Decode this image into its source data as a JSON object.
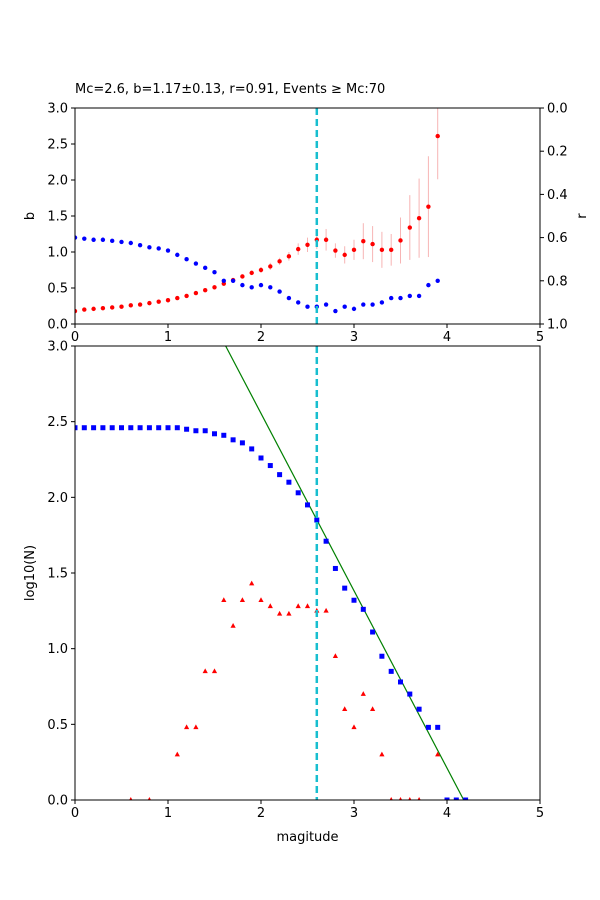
{
  "chart_data": [
    {
      "type": "scatter",
      "title": "Mc=2.6, b=1.17±0.13, r=0.91, Events ≥ Mc:70",
      "ylabel": "b",
      "y2label": "r",
      "xlim": [
        0,
        5
      ],
      "xticks": [
        0,
        1,
        2,
        3,
        4,
        5
      ],
      "ylim": [
        0,
        3
      ],
      "yticks": [
        {
          "value": 0,
          "label": "0.0"
        },
        0.5,
        {
          "value": 1,
          "label": "1.0"
        },
        1.5,
        {
          "value": 2,
          "label": "2.0"
        },
        2.5,
        {
          "value": 3,
          "label": "3.0"
        }
      ],
      "y2lim": [
        1,
        0
      ],
      "y2ticks": [
        {
          "value": 0,
          "label": "0.0"
        },
        0.2,
        0.4,
        0.6,
        0.8,
        {
          "value": 1,
          "label": "1.0"
        }
      ],
      "vline": 2.6,
      "vline_color": "#17becf",
      "series": [
        {
          "color": "red",
          "marker": "o",
          "error_color": "#f7b4b4",
          "x": [
            0,
            0.1,
            0.2,
            0.3,
            0.4,
            0.5,
            0.6,
            0.7,
            0.8,
            0.9,
            1,
            1.1,
            1.2,
            1.3,
            1.4,
            1.5,
            1.6,
            1.7,
            1.8,
            1.9,
            2,
            2.1,
            2.2,
            2.3,
            2.4,
            2.5,
            2.6,
            2.7,
            2.8,
            2.9,
            3,
            3.1,
            3.2,
            3.3,
            3.4,
            3.5,
            3.6,
            3.7,
            3.8,
            3.9
          ],
          "values": [
            0.18,
            0.2,
            0.21,
            0.22,
            0.23,
            0.24,
            0.26,
            0.27,
            0.29,
            0.31,
            0.33,
            0.36,
            0.39,
            0.43,
            0.47,
            0.51,
            0.56,
            0.61,
            0.66,
            0.71,
            0.75,
            0.8,
            0.87,
            0.94,
            1.04,
            1.1,
            1.17,
            1.17,
            1.02,
            0.96,
            1.03,
            1.15,
            1.11,
            1.03,
            1.03,
            1.16,
            1.34,
            1.47,
            1.63,
            2.61
          ],
          "errors": [
            0.01,
            0.01,
            0.01,
            0.01,
            0.01,
            0.015,
            0.015,
            0.015,
            0.015,
            0.015,
            0.02,
            0.02,
            0.02,
            0.02,
            0.02,
            0.03,
            0.03,
            0.03,
            0.03,
            0.03,
            0.04,
            0.05,
            0.05,
            0.06,
            0.08,
            0.1,
            0.13,
            0.15,
            0.1,
            0.12,
            0.14,
            0.25,
            0.25,
            0.25,
            0.22,
            0.32,
            0.45,
            0.55,
            0.7,
            0.6
          ]
        },
        {
          "color": "blue",
          "marker": "o",
          "axis": "y2",
          "x": [
            0,
            0.1,
            0.2,
            0.3,
            0.4,
            0.5,
            0.6,
            0.7,
            0.8,
            0.9,
            1,
            1.1,
            1.2,
            1.3,
            1.4,
            1.5,
            1.6,
            1.7,
            1.8,
            1.9,
            2,
            2.1,
            2.2,
            2.3,
            2.4,
            2.5,
            2.6,
            2.7,
            2.8,
            2.9,
            3,
            3.1,
            3.2,
            3.3,
            3.4,
            3.5,
            3.6,
            3.7,
            3.8,
            3.9
          ],
          "values": [
            0.6,
            0.605,
            0.61,
            0.61,
            0.615,
            0.62,
            0.625,
            0.635,
            0.645,
            0.65,
            0.66,
            0.68,
            0.7,
            0.72,
            0.74,
            0.76,
            0.8,
            0.8,
            0.82,
            0.83,
            0.82,
            0.83,
            0.85,
            0.88,
            0.9,
            0.92,
            0.92,
            0.91,
            0.94,
            0.92,
            0.93,
            0.91,
            0.91,
            0.9,
            0.88,
            0.88,
            0.87,
            0.87,
            0.82,
            0.8
          ]
        }
      ]
    },
    {
      "type": "scatter",
      "xlabel": "magitude",
      "ylabel": "log10(N)",
      "xlim": [
        0,
        5
      ],
      "xticks": [
        0,
        1,
        2,
        3,
        4,
        5
      ],
      "ylim": [
        0,
        3
      ],
      "yticks": [
        {
          "value": 0,
          "label": "0.0"
        },
        0.5,
        {
          "value": 1,
          "label": "1.0"
        },
        1.5,
        {
          "value": 2,
          "label": "2.0"
        },
        2.5,
        {
          "value": 3,
          "label": "3.0"
        }
      ],
      "vline": 2.6,
      "vline_color": "#17becf",
      "series": [
        {
          "color": "green",
          "marker": "line",
          "x": [
            1.62,
            4.18
          ],
          "values": [
            3,
            0
          ]
        },
        {
          "color": "blue",
          "marker": "s",
          "x": [
            0,
            0.1,
            0.2,
            0.3,
            0.4,
            0.5,
            0.6,
            0.7,
            0.8,
            0.9,
            1,
            1.1,
            1.2,
            1.3,
            1.4,
            1.5,
            1.6,
            1.7,
            1.8,
            1.9,
            2,
            2.1,
            2.2,
            2.3,
            2.4,
            2.5,
            2.6,
            2.7,
            2.8,
            2.9,
            3,
            3.1,
            3.2,
            3.3,
            3.4,
            3.5,
            3.6,
            3.7,
            3.8,
            3.9,
            4,
            4.1,
            4.2
          ],
          "values": [
            2.46,
            2.46,
            2.46,
            2.46,
            2.46,
            2.46,
            2.46,
            2.46,
            2.46,
            2.46,
            2.46,
            2.46,
            2.45,
            2.44,
            2.44,
            2.42,
            2.41,
            2.38,
            2.36,
            2.32,
            2.26,
            2.21,
            2.15,
            2.1,
            2.03,
            1.95,
            1.85,
            1.71,
            1.53,
            1.4,
            1.32,
            1.26,
            1.11,
            0.95,
            0.85,
            0.78,
            0.7,
            0.6,
            0.48,
            0.48,
            0,
            0,
            0
          ]
        },
        {
          "color": "red",
          "marker": "^",
          "x": [
            0.6,
            0.8,
            1.1,
            1.2,
            1.3,
            1.4,
            1.5,
            1.6,
            1.7,
            1.8,
            1.9,
            2,
            2.1,
            2.2,
            2.3,
            2.4,
            2.5,
            2.6,
            2.7,
            2.8,
            2.9,
            3,
            3.1,
            3.2,
            3.3,
            3.4,
            3.5,
            3.6,
            3.7,
            3.9
          ],
          "values": [
            0,
            0,
            0.3,
            0.48,
            0.48,
            0.85,
            0.85,
            1.32,
            1.15,
            1.32,
            1.43,
            1.32,
            1.28,
            1.23,
            1.23,
            1.28,
            1.28,
            1.25,
            1.25,
            0.95,
            0.6,
            0.48,
            0.7,
            0.6,
            0.3,
            0,
            0,
            0,
            0,
            0.3
          ]
        }
      ]
    }
  ]
}
